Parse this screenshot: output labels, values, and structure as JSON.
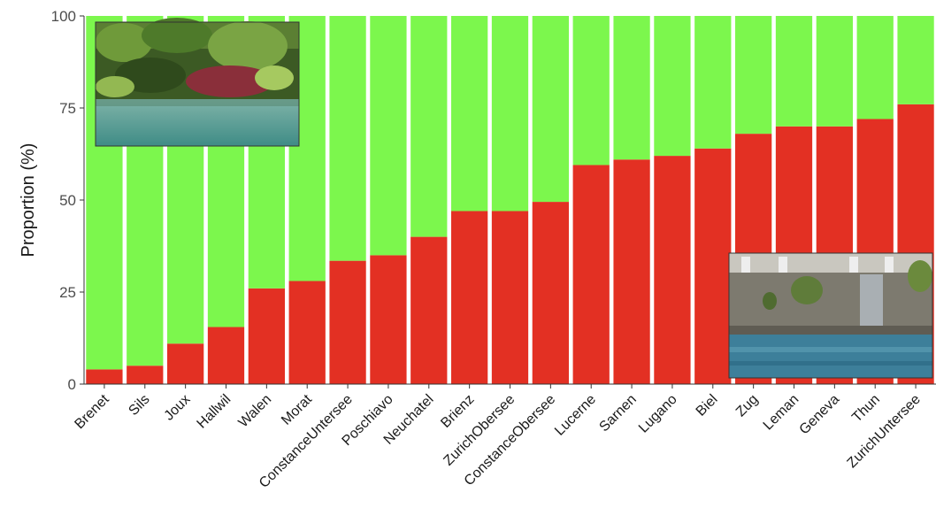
{
  "chart_data": {
    "type": "bar",
    "stacked": true,
    "percent": true,
    "ylabel": "Proportion (%)",
    "xlabel": "",
    "ylim": [
      0,
      100
    ],
    "yticks": [
      "0",
      "25",
      "50",
      "75",
      "100"
    ],
    "grid": false,
    "legend": "none",
    "categories": [
      "Brenet",
      "Sils",
      "Joux",
      "Hallwil",
      "Walen",
      "Morat",
      "ConstanceUntersee",
      "Poschiavo",
      "Neuchatel",
      "Brienz",
      "ZurichObersee",
      "ConstanceObersee",
      "Lucerne",
      "Sarnen",
      "Lugano",
      "Biel",
      "Zug",
      "Leman",
      "Geneva",
      "Thun",
      "ZurichUntersee"
    ],
    "series": [
      {
        "color": "#e33023",
        "values": [
          4,
          5,
          11,
          15.5,
          26,
          28,
          33.5,
          35,
          40,
          47,
          47,
          49.5,
          59.5,
          61,
          62,
          64,
          68,
          70,
          70,
          72,
          76
        ]
      },
      {
        "color": "#7cf74d",
        "values": [
          96,
          95,
          89,
          84.5,
          74,
          72,
          66.5,
          65,
          60,
          53,
          53,
          50.5,
          40.5,
          39,
          38,
          36,
          32,
          30,
          30,
          28,
          24
        ]
      }
    ],
    "insets": [
      "lake-shore-vegetation-photo",
      "lake-stone-wall-photo"
    ]
  }
}
